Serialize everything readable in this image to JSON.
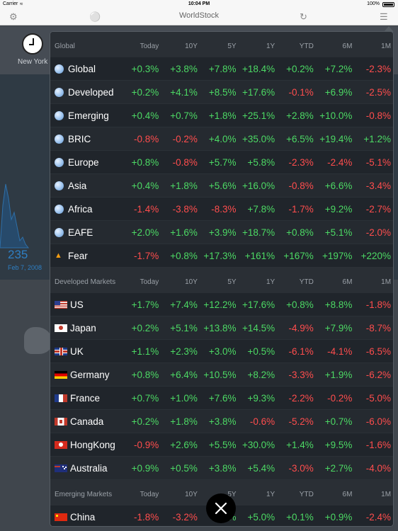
{
  "status_bar": {
    "carrier": "Carrier",
    "time": "10:04 PM",
    "battery": "100%"
  },
  "nav": {
    "title": "WorldStock",
    "left_icon": "gear-icon",
    "globe_icon": "globe-icon",
    "refresh_icon": "refresh-icon",
    "menu_icon": "menu-icon"
  },
  "background": {
    "city": "New York",
    "value": "235",
    "date": "Feb 7, 2008"
  },
  "columns": [
    "Today",
    "10Y",
    "5Y",
    "1Y",
    "YTD",
    "6M",
    "1M"
  ],
  "sections": [
    {
      "title": "Global",
      "rows": [
        {
          "icon": "globe-icon",
          "name": "Global",
          "values": [
            "+0.3%",
            "+3.8%",
            "+7.8%",
            "+18.4%",
            "+0.2%",
            "+7.2%",
            "-2.3%"
          ]
        },
        {
          "icon": "globe-icon",
          "name": "Developed",
          "values": [
            "+0.2%",
            "+4.1%",
            "+8.5%",
            "+17.6%",
            "-0.1%",
            "+6.9%",
            "-2.5%"
          ]
        },
        {
          "icon": "globe-icon",
          "name": "Emerging",
          "values": [
            "+0.4%",
            "+0.7%",
            "+1.8%",
            "+25.1%",
            "+2.8%",
            "+10.0%",
            "-0.8%"
          ]
        },
        {
          "icon": "globe-icon",
          "name": "BRIC",
          "values": [
            "-0.8%",
            "-0.2%",
            "+4.0%",
            "+35.0%",
            "+6.5%",
            "+19.4%",
            "+1.2%"
          ]
        },
        {
          "icon": "globe-icon",
          "name": "Europe",
          "values": [
            "+0.8%",
            "-0.8%",
            "+5.7%",
            "+5.8%",
            "-2.3%",
            "-2.4%",
            "-5.1%"
          ]
        },
        {
          "icon": "globe-icon",
          "name": "Asia",
          "values": [
            "+0.4%",
            "+1.8%",
            "+5.6%",
            "+16.0%",
            "-0.8%",
            "+6.6%",
            "-3.4%"
          ]
        },
        {
          "icon": "globe-icon",
          "name": "Africa",
          "values": [
            "-1.4%",
            "-3.8%",
            "-8.3%",
            "+7.8%",
            "-1.7%",
            "+9.2%",
            "-2.7%"
          ]
        },
        {
          "icon": "globe-icon",
          "name": "EAFE",
          "values": [
            "+2.0%",
            "+1.6%",
            "+3.9%",
            "+18.7%",
            "+0.8%",
            "+5.1%",
            "-2.0%"
          ]
        },
        {
          "icon": "fire-icon",
          "name": "Fear",
          "values": [
            "-1.7%",
            "+0.8%",
            "+17.3%",
            "+161%",
            "+167%",
            "+197%",
            "+220%"
          ]
        }
      ]
    },
    {
      "title": "Developed Markets",
      "rows": [
        {
          "icon": "us-flag-icon",
          "flag": "us",
          "name": "US",
          "values": [
            "+1.7%",
            "+7.4%",
            "+12.2%",
            "+17.6%",
            "+0.8%",
            "+8.8%",
            "-1.8%"
          ]
        },
        {
          "icon": "japan-flag-icon",
          "flag": "jp",
          "name": "Japan",
          "values": [
            "+0.2%",
            "+5.1%",
            "+13.8%",
            "+14.5%",
            "-4.9%",
            "+7.9%",
            "-8.7%"
          ]
        },
        {
          "icon": "uk-flag-icon",
          "flag": "uk",
          "name": "UK",
          "values": [
            "+1.1%",
            "+2.3%",
            "+3.0%",
            "+0.5%",
            "-6.1%",
            "-4.1%",
            "-6.5%"
          ]
        },
        {
          "icon": "germany-flag-icon",
          "flag": "de",
          "name": "Germany",
          "values": [
            "+0.8%",
            "+6.4%",
            "+10.5%",
            "+8.2%",
            "-3.3%",
            "+1.9%",
            "-6.2%"
          ]
        },
        {
          "icon": "france-flag-icon",
          "flag": "fr",
          "name": "France",
          "values": [
            "+0.7%",
            "+1.0%",
            "+7.6%",
            "+9.3%",
            "-2.2%",
            "-0.2%",
            "-5.0%"
          ]
        },
        {
          "icon": "canada-flag-icon",
          "flag": "ca",
          "name": "Canada",
          "values": [
            "+0.2%",
            "+1.8%",
            "+3.8%",
            "-0.6%",
            "-5.2%",
            "+0.7%",
            "-6.0%"
          ]
        },
        {
          "icon": "hongkong-flag-icon",
          "flag": "hk",
          "name": "HongKong",
          "values": [
            "-0.9%",
            "+2.6%",
            "+5.5%",
            "+30.0%",
            "+1.4%",
            "+9.5%",
            "-1.6%"
          ]
        },
        {
          "icon": "australia-flag-icon",
          "flag": "au",
          "name": "Australia",
          "values": [
            "+0.9%",
            "+0.5%",
            "+3.8%",
            "+5.4%",
            "-3.0%",
            "+2.7%",
            "-4.0%"
          ]
        }
      ]
    },
    {
      "title": "Emerging Markets",
      "rows": [
        {
          "icon": "china-flag-icon",
          "flag": "cn",
          "name": "China",
          "values": [
            "-1.8%",
            "-3.2%",
            "+1.8%",
            "+5.0%",
            "+0.1%",
            "+0.9%",
            "-2.4%"
          ]
        }
      ]
    }
  ],
  "colors": {
    "positive": "#4cd964",
    "negative": "#ff4d4d",
    "panel_bg": "#1b2026"
  },
  "close_button": {
    "icon": "close-icon"
  }
}
